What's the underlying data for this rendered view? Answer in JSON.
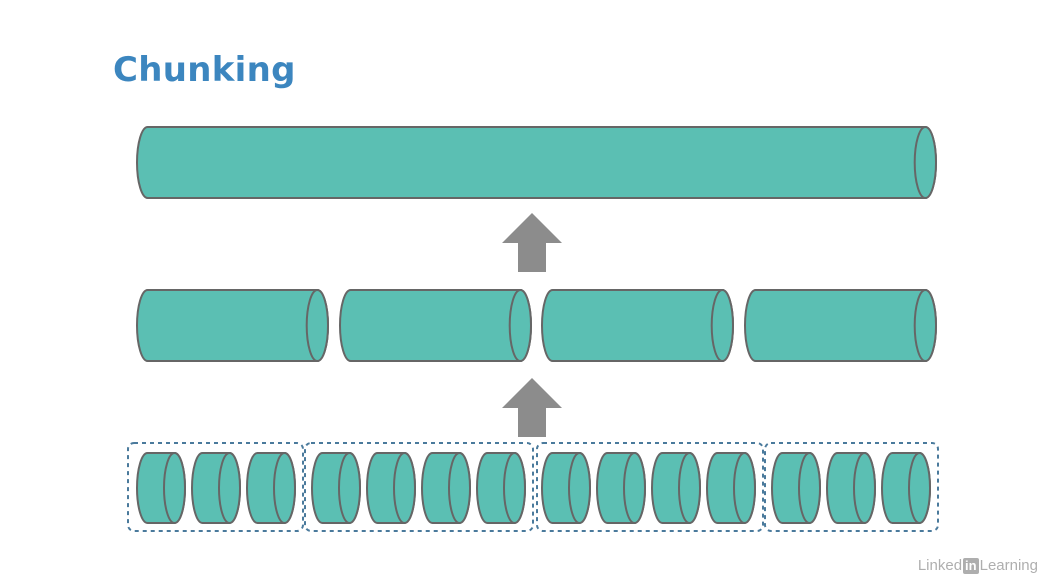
{
  "title": "Chunking",
  "colors": {
    "title": "#3c86bf",
    "cylinder_fill": "#5bbfb3",
    "cylinder_stroke": "#666666",
    "arrow": "#8c8c8c",
    "group_border": "#4a7a9c"
  },
  "levels": [
    {
      "name": "whole",
      "count": 1
    },
    {
      "name": "chunks",
      "count": 4
    },
    {
      "name": "items",
      "groups": [
        3,
        4,
        4,
        3
      ]
    }
  ],
  "arrows": [
    {
      "direction": "up",
      "from": "items",
      "to": "chunks"
    },
    {
      "direction": "up",
      "from": "chunks",
      "to": "whole"
    }
  ],
  "watermark": {
    "brand_prefix": "Linked",
    "brand_box": "in",
    "brand_suffix": " Learning"
  }
}
